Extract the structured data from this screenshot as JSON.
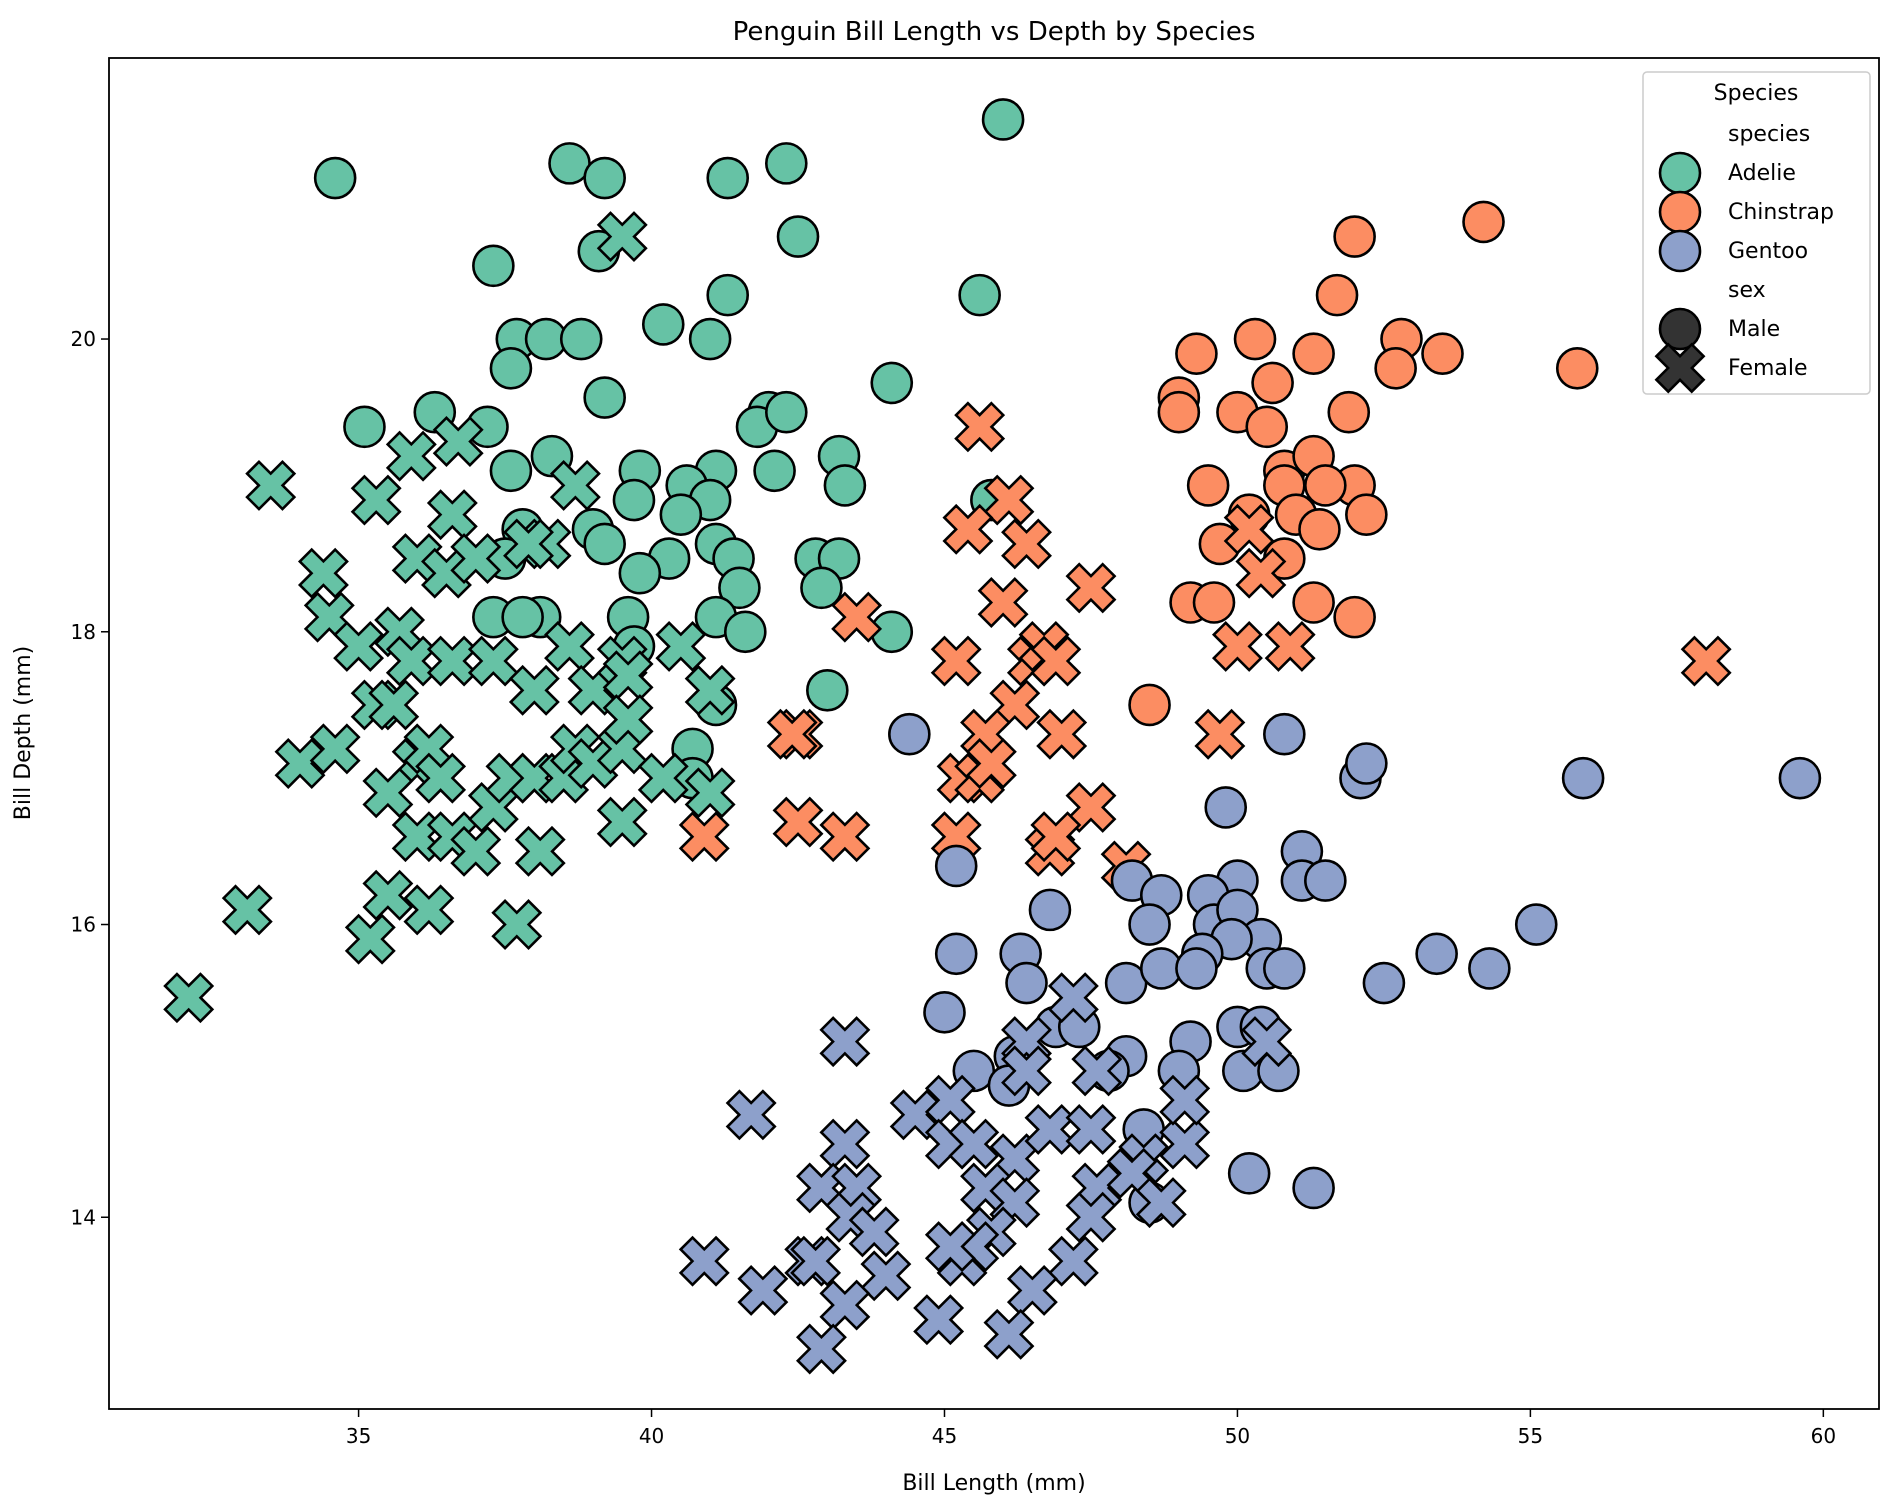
{
  "chart_data": {
    "type": "scatter",
    "title": "Penguin Bill Length vs Depth by Species",
    "xlabel": "Bill Length (mm)",
    "ylabel": "Bill Depth (mm)",
    "xlim": [
      30.74,
      60.95
    ],
    "ylim": [
      12.69,
      21.92
    ],
    "xticks": [
      35,
      40,
      45,
      50,
      55,
      60
    ],
    "yticks": [
      14,
      16,
      18,
      20
    ],
    "grid": false,
    "legend": {
      "placement": "top-right",
      "title": "Species",
      "hue_header": "species",
      "style_header": "sex",
      "species": [
        {
          "name": "Adelie",
          "color": "#66c2a5"
        },
        {
          "name": "Chinstrap",
          "color": "#fc8d62"
        },
        {
          "name": "Gentoo",
          "color": "#8da0cb"
        }
      ],
      "sexes": [
        {
          "name": "Male",
          "marker": "circle",
          "color": "#333333"
        },
        {
          "name": "Female",
          "marker": "X",
          "color": "#333333"
        }
      ]
    },
    "series": [
      {
        "species": "Adelie",
        "sex": "Male",
        "points": [
          [
            34.6,
            21.1
          ],
          [
            38.6,
            21.2
          ],
          [
            39.2,
            21.1
          ],
          [
            41.3,
            21.1
          ],
          [
            42.3,
            21.2
          ],
          [
            46.0,
            21.5
          ],
          [
            37.3,
            20.5
          ],
          [
            39.1,
            20.6
          ],
          [
            42.5,
            20.7
          ],
          [
            41.3,
            20.3
          ],
          [
            45.6,
            20.3
          ],
          [
            40.2,
            20.1
          ],
          [
            41.0,
            20.0
          ],
          [
            37.7,
            20.0
          ],
          [
            38.2,
            20.0
          ],
          [
            38.8,
            20.0
          ],
          [
            37.6,
            19.8
          ],
          [
            39.2,
            19.6
          ],
          [
            44.1,
            19.7
          ],
          [
            35.1,
            19.4
          ],
          [
            36.3,
            19.5
          ],
          [
            37.2,
            19.4
          ],
          [
            42.0,
            19.5
          ],
          [
            41.8,
            19.4
          ],
          [
            42.3,
            19.5
          ],
          [
            38.3,
            19.2
          ],
          [
            37.6,
            19.1
          ],
          [
            43.2,
            19.2
          ],
          [
            39.8,
            19.1
          ],
          [
            41.1,
            19.1
          ],
          [
            42.1,
            19.1
          ],
          [
            43.3,
            19.0
          ],
          [
            40.6,
            19.0
          ],
          [
            39.7,
            18.9
          ],
          [
            41.0,
            18.9
          ],
          [
            45.8,
            18.9
          ],
          [
            40.5,
            18.8
          ],
          [
            39.0,
            18.7
          ],
          [
            37.8,
            18.7
          ],
          [
            39.2,
            18.6
          ],
          [
            41.1,
            18.6
          ],
          [
            41.4,
            18.5
          ],
          [
            37.5,
            18.5
          ],
          [
            40.3,
            18.5
          ],
          [
            42.8,
            18.5
          ],
          [
            43.2,
            18.5
          ],
          [
            39.8,
            18.4
          ],
          [
            41.5,
            18.3
          ],
          [
            42.9,
            18.3
          ],
          [
            37.3,
            18.1
          ],
          [
            38.1,
            18.1
          ],
          [
            37.8,
            18.1
          ],
          [
            39.6,
            18.1
          ],
          [
            41.1,
            18.1
          ],
          [
            41.6,
            18.0
          ],
          [
            44.1,
            18.0
          ],
          [
            39.7,
            17.9
          ],
          [
            43.0,
            17.6
          ],
          [
            41.1,
            17.5
          ],
          [
            40.7,
            17.2
          ],
          [
            40.7,
            17.0
          ]
        ]
      },
      {
        "species": "Adelie",
        "sex": "Female",
        "points": [
          [
            39.5,
            20.7
          ],
          [
            33.5,
            19.0
          ],
          [
            35.3,
            18.9
          ],
          [
            35.9,
            19.2
          ],
          [
            36.7,
            19.3
          ],
          [
            38.7,
            19.0
          ],
          [
            34.4,
            18.4
          ],
          [
            34.5,
            18.1
          ],
          [
            35.0,
            17.9
          ],
          [
            35.7,
            18.0
          ],
          [
            35.9,
            17.8
          ],
          [
            36.0,
            18.5
          ],
          [
            36.5,
            18.4
          ],
          [
            36.6,
            18.8
          ],
          [
            37.0,
            18.5
          ],
          [
            36.6,
            17.8
          ],
          [
            37.3,
            17.8
          ],
          [
            38.0,
            17.6
          ],
          [
            38.6,
            17.9
          ],
          [
            39.0,
            17.6
          ],
          [
            39.5,
            17.8
          ],
          [
            39.6,
            17.7
          ],
          [
            40.5,
            17.9
          ],
          [
            41.0,
            17.6
          ],
          [
            34.0,
            17.1
          ],
          [
            34.6,
            17.2
          ],
          [
            35.3,
            17.5
          ],
          [
            35.6,
            17.5
          ],
          [
            36.0,
            17.1
          ],
          [
            36.2,
            17.2
          ],
          [
            36.4,
            17.0
          ],
          [
            35.5,
            16.9
          ],
          [
            36.0,
            16.6
          ],
          [
            36.6,
            16.6
          ],
          [
            37.0,
            16.5
          ],
          [
            37.3,
            16.8
          ],
          [
            37.6,
            17.0
          ],
          [
            38.0,
            17.0
          ],
          [
            38.5,
            17.0
          ],
          [
            38.7,
            17.2
          ],
          [
            39.0,
            17.1
          ],
          [
            39.5,
            17.2
          ],
          [
            39.6,
            17.4
          ],
          [
            40.2,
            17.0
          ],
          [
            41.0,
            16.9
          ],
          [
            38.1,
            16.5
          ],
          [
            39.5,
            16.7
          ],
          [
            35.5,
            16.2
          ],
          [
            36.2,
            16.1
          ],
          [
            35.2,
            15.9
          ],
          [
            33.1,
            16.1
          ],
          [
            32.1,
            15.5
          ],
          [
            37.7,
            16.0
          ],
          [
            38.2,
            18.6
          ],
          [
            37.9,
            18.6
          ]
        ]
      },
      {
        "species": "Chinstrap",
        "sex": "Male",
        "points": [
          [
            54.2,
            20.8
          ],
          [
            52.0,
            20.7
          ],
          [
            51.7,
            20.3
          ],
          [
            50.3,
            20.0
          ],
          [
            52.8,
            20.0
          ],
          [
            49.3,
            19.9
          ],
          [
            51.3,
            19.9
          ],
          [
            53.5,
            19.9
          ],
          [
            52.7,
            19.8
          ],
          [
            55.8,
            19.8
          ],
          [
            49.0,
            19.6
          ],
          [
            50.0,
            19.5
          ],
          [
            50.6,
            19.7
          ],
          [
            50.5,
            19.4
          ],
          [
            51.9,
            19.5
          ],
          [
            49.0,
            19.5
          ],
          [
            50.8,
            19.1
          ],
          [
            51.3,
            19.2
          ],
          [
            52.0,
            19.0
          ],
          [
            51.5,
            19.0
          ],
          [
            50.8,
            19.0
          ],
          [
            49.5,
            19.0
          ],
          [
            50.2,
            18.8
          ],
          [
            51.0,
            18.8
          ],
          [
            52.2,
            18.8
          ],
          [
            51.4,
            18.7
          ],
          [
            49.7,
            18.6
          ],
          [
            50.8,
            18.5
          ],
          [
            49.2,
            18.2
          ],
          [
            49.6,
            18.2
          ],
          [
            51.3,
            18.2
          ],
          [
            52.0,
            18.1
          ],
          [
            48.5,
            17.5
          ]
        ]
      },
      {
        "species": "Chinstrap",
        "sex": "Female",
        "points": [
          [
            46.1,
            18.9
          ],
          [
            45.6,
            19.4
          ],
          [
            45.4,
            18.7
          ],
          [
            46.4,
            18.6
          ],
          [
            47.5,
            18.3
          ],
          [
            46.0,
            18.2
          ],
          [
            43.5,
            18.1
          ],
          [
            45.2,
            17.8
          ],
          [
            46.5,
            17.8
          ],
          [
            46.7,
            17.9
          ],
          [
            46.9,
            17.8
          ],
          [
            46.2,
            17.5
          ],
          [
            42.5,
            17.3
          ],
          [
            45.7,
            17.3
          ],
          [
            47.0,
            17.3
          ],
          [
            42.4,
            17.3
          ],
          [
            45.3,
            17.0
          ],
          [
            45.6,
            17.0
          ],
          [
            45.8,
            17.1
          ],
          [
            49.7,
            17.3
          ],
          [
            50.2,
            18.7
          ],
          [
            50.0,
            17.9
          ],
          [
            50.9,
            17.9
          ],
          [
            50.4,
            18.4
          ],
          [
            58.0,
            17.8
          ],
          [
            42.5,
            16.7
          ],
          [
            43.3,
            16.6
          ],
          [
            40.9,
            16.6
          ],
          [
            45.2,
            16.6
          ],
          [
            47.5,
            16.8
          ],
          [
            46.8,
            16.5
          ],
          [
            46.9,
            16.6
          ],
          [
            48.1,
            16.4
          ]
        ]
      },
      {
        "species": "Gentoo",
        "sex": "Male",
        "points": [
          [
            44.4,
            17.3
          ],
          [
            50.8,
            17.3
          ],
          [
            52.1,
            17.0
          ],
          [
            52.2,
            17.1
          ],
          [
            55.9,
            17.0
          ],
          [
            59.6,
            17.0
          ],
          [
            49.8,
            16.8
          ],
          [
            51.1,
            16.5
          ],
          [
            51.1,
            16.3
          ],
          [
            51.5,
            16.3
          ],
          [
            45.2,
            16.4
          ],
          [
            50.0,
            16.3
          ],
          [
            48.2,
            16.3
          ],
          [
            48.7,
            16.2
          ],
          [
            49.5,
            16.2
          ],
          [
            49.6,
            16.0
          ],
          [
            46.8,
            16.1
          ],
          [
            48.5,
            16.0
          ],
          [
            50.0,
            16.1
          ],
          [
            55.1,
            16.0
          ],
          [
            50.4,
            15.9
          ],
          [
            49.9,
            15.9
          ],
          [
            46.3,
            15.8
          ],
          [
            45.2,
            15.8
          ],
          [
            49.4,
            15.8
          ],
          [
            53.4,
            15.8
          ],
          [
            48.1,
            15.6
          ],
          [
            46.4,
            15.6
          ],
          [
            52.5,
            15.6
          ],
          [
            48.7,
            15.7
          ],
          [
            49.3,
            15.7
          ],
          [
            50.5,
            15.7
          ],
          [
            50.8,
            15.7
          ],
          [
            54.3,
            15.7
          ],
          [
            45.0,
            15.4
          ],
          [
            46.9,
            15.3
          ],
          [
            47.3,
            15.3
          ],
          [
            46.2,
            15.1
          ],
          [
            49.2,
            15.2
          ],
          [
            50.0,
            15.3
          ],
          [
            50.4,
            15.3
          ],
          [
            45.5,
            15.0
          ],
          [
            48.1,
            15.1
          ],
          [
            49.0,
            15.0
          ],
          [
            50.1,
            15.0
          ],
          [
            50.7,
            15.0
          ],
          [
            47.8,
            15.0
          ],
          [
            46.1,
            14.9
          ],
          [
            48.4,
            14.6
          ],
          [
            48.5,
            14.1
          ],
          [
            50.2,
            14.3
          ],
          [
            51.3,
            14.2
          ]
        ]
      },
      {
        "species": "Gentoo",
        "sex": "Female",
        "points": [
          [
            43.3,
            15.2
          ],
          [
            46.4,
            15.2
          ],
          [
            47.2,
            15.5
          ],
          [
            50.5,
            15.2
          ],
          [
            41.7,
            14.7
          ],
          [
            44.5,
            14.7
          ],
          [
            45.1,
            14.8
          ],
          [
            46.4,
            15.0
          ],
          [
            47.6,
            15.0
          ],
          [
            43.3,
            14.5
          ],
          [
            45.1,
            14.5
          ],
          [
            45.5,
            14.5
          ],
          [
            46.2,
            14.4
          ],
          [
            46.8,
            14.6
          ],
          [
            47.5,
            14.6
          ],
          [
            48.4,
            14.4
          ],
          [
            49.1,
            14.5
          ],
          [
            49.1,
            14.8
          ],
          [
            42.9,
            14.2
          ],
          [
            43.5,
            14.2
          ],
          [
            45.7,
            14.2
          ],
          [
            46.2,
            14.1
          ],
          [
            47.6,
            14.2
          ],
          [
            48.2,
            14.3
          ],
          [
            43.4,
            14.0
          ],
          [
            43.8,
            13.9
          ],
          [
            45.8,
            13.9
          ],
          [
            47.5,
            14.0
          ],
          [
            48.7,
            14.1
          ],
          [
            40.9,
            13.7
          ],
          [
            42.7,
            13.7
          ],
          [
            42.8,
            13.7
          ],
          [
            45.3,
            13.7
          ],
          [
            45.5,
            13.8
          ],
          [
            47.2,
            13.7
          ],
          [
            44.0,
            13.6
          ],
          [
            45.1,
            13.8
          ],
          [
            41.9,
            13.5
          ],
          [
            46.5,
            13.5
          ],
          [
            43.3,
            13.4
          ],
          [
            44.9,
            13.3
          ],
          [
            46.1,
            13.2
          ],
          [
            42.9,
            13.1
          ]
        ]
      }
    ]
  }
}
